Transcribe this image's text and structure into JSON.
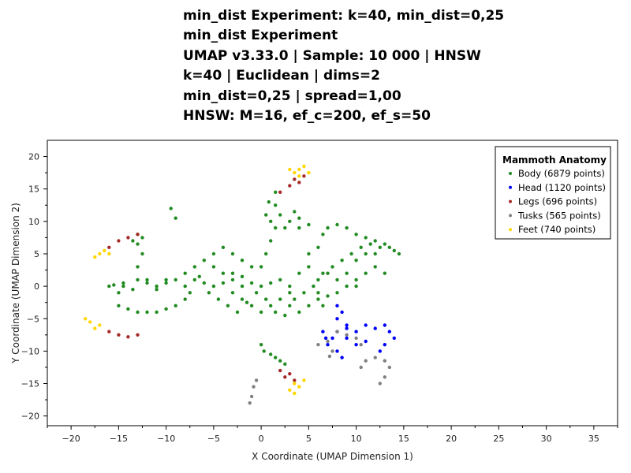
{
  "title_lines": [
    "min_dist Experiment: k=40, min_dist=0,25",
    "min_dist Experiment",
    "UMAP v3.33.0 | Sample: 10 000 | HNSW",
    "k=40 | Euclidean | dims=2",
    "min_dist=0,25 | spread=1,00",
    "HNSW: M=16, ef_c=200, ef_s=50"
  ],
  "chart_data": {
    "type": "scatter",
    "xlabel": "X Coordinate (UMAP Dimension 1)",
    "ylabel": "Y Coordinate (UMAP Dimension 2)",
    "xlim": [
      -22.5,
      37.5
    ],
    "ylim": [
      -21.5,
      22.5
    ],
    "xticks": [
      -20,
      -15,
      -10,
      -5,
      0,
      5,
      10,
      15,
      20,
      25,
      30,
      35
    ],
    "yticks": [
      20,
      15,
      10,
      5,
      0,
      -5,
      -10,
      -15,
      -20
    ],
    "grid": false,
    "legend": {
      "title": "Mammoth Anatomy",
      "placement": "top-right"
    },
    "series": [
      {
        "name": "Body (6879 points)",
        "color": "#228b22",
        "points": [
          [
            -16,
            0
          ],
          [
            -15,
            -1
          ],
          [
            -14.5,
            0.5
          ],
          [
            -13,
            1
          ],
          [
            -12,
            0.5
          ],
          [
            -11,
            0
          ],
          [
            -10,
            0.5
          ],
          [
            -9,
            1
          ],
          [
            -8,
            0
          ],
          [
            -7,
            1
          ],
          [
            -6,
            0.5
          ],
          [
            -5,
            0
          ],
          [
            -4,
            0.5
          ],
          [
            -3,
            1
          ],
          [
            -2,
            0
          ],
          [
            -1,
            0.5
          ],
          [
            0,
            0
          ],
          [
            1,
            0.5
          ],
          [
            2,
            1
          ],
          [
            3,
            0
          ],
          [
            -15,
            -3
          ],
          [
            -14,
            -3.5
          ],
          [
            -13,
            -4
          ],
          [
            -12,
            -4
          ],
          [
            -11,
            -4
          ],
          [
            -10,
            -3.5
          ],
          [
            -9,
            -3
          ],
          [
            -8,
            -2
          ],
          [
            -13,
            3
          ],
          [
            -12.5,
            5
          ],
          [
            -13,
            6.5
          ],
          [
            -13,
            8
          ],
          [
            -13.5,
            7
          ],
          [
            -12.5,
            7.5
          ],
          [
            -8,
            2
          ],
          [
            -7,
            3
          ],
          [
            -6,
            4
          ],
          [
            -5,
            5
          ],
          [
            -4,
            6
          ],
          [
            -3,
            5
          ],
          [
            -2,
            4
          ],
          [
            -1,
            3
          ],
          [
            -4,
            2
          ],
          [
            -5,
            3
          ],
          [
            -3,
            2
          ],
          [
            -2,
            1.5
          ],
          [
            -2,
            -2
          ],
          [
            -1,
            -3
          ],
          [
            0,
            -4
          ],
          [
            1,
            -3
          ],
          [
            2,
            -2
          ],
          [
            3,
            -3
          ],
          [
            4,
            -4
          ],
          [
            5,
            -3
          ],
          [
            3,
            -1
          ],
          [
            -3,
            -1
          ],
          [
            0,
            3
          ],
          [
            0.5,
            5
          ],
          [
            1,
            7
          ],
          [
            1.5,
            9
          ],
          [
            1,
            10
          ],
          [
            0.5,
            11
          ],
          [
            0.8,
            13
          ],
          [
            1.5,
            14.5
          ],
          [
            1.5,
            12.5
          ],
          [
            2,
            11
          ],
          [
            3,
            10
          ],
          [
            4,
            9
          ],
          [
            5,
            9.5
          ],
          [
            3.5,
            11.5
          ],
          [
            4,
            10.5
          ],
          [
            2.5,
            9
          ],
          [
            5,
            5
          ],
          [
            6,
            6
          ],
          [
            6.5,
            8
          ],
          [
            7,
            9
          ],
          [
            8,
            9.5
          ],
          [
            9,
            9
          ],
          [
            10,
            8
          ],
          [
            11,
            7.5
          ],
          [
            12,
            7
          ],
          [
            13,
            6.5
          ],
          [
            13.5,
            6
          ],
          [
            14,
            5.5
          ],
          [
            14.5,
            5
          ],
          [
            4,
            2
          ],
          [
            5,
            3
          ],
          [
            6,
            1
          ],
          [
            7,
            2
          ],
          [
            8,
            1
          ],
          [
            9,
            2
          ],
          [
            10,
            1
          ],
          [
            11,
            2
          ],
          [
            12,
            3
          ],
          [
            13,
            2
          ],
          [
            10,
            4
          ],
          [
            11,
            5
          ],
          [
            12,
            5
          ],
          [
            6,
            -1
          ],
          [
            6,
            -2
          ],
          [
            6.5,
            -3
          ],
          [
            7,
            -1.5
          ],
          [
            8,
            -1
          ],
          [
            9,
            0
          ],
          [
            10,
            0
          ],
          [
            0,
            -9
          ],
          [
            0.3,
            -10
          ],
          [
            1,
            -10.5
          ],
          [
            1.5,
            -11
          ],
          [
            2,
            -11.5
          ],
          [
            2.5,
            -12
          ],
          [
            -9.5,
            12
          ],
          [
            -9,
            10.5
          ],
          [
            -14.5,
            0
          ],
          [
            -15.5,
            0.2
          ],
          [
            -13.5,
            -0.5
          ],
          [
            -12,
            1
          ],
          [
            -11,
            -0.5
          ],
          [
            -10,
            1
          ],
          [
            -7.5,
            -1
          ],
          [
            -6.5,
            1.5
          ],
          [
            -5.5,
            -1
          ],
          [
            -4.5,
            -2
          ],
          [
            -3.5,
            -3
          ],
          [
            -2.5,
            -4
          ],
          [
            -1.5,
            -2.5
          ],
          [
            -0.5,
            -1
          ],
          [
            0.5,
            -2
          ],
          [
            1.5,
            -4
          ],
          [
            2.5,
            -4.5
          ],
          [
            3.5,
            -2
          ],
          [
            4.5,
            -1
          ],
          [
            5.5,
            0
          ],
          [
            6.5,
            2
          ],
          [
            7.5,
            3
          ],
          [
            8.5,
            4
          ],
          [
            9.5,
            5
          ],
          [
            10.5,
            6
          ],
          [
            11.5,
            6.5
          ],
          [
            12.5,
            6
          ]
        ]
      },
      {
        "name": "Head (1120 points)",
        "color": "#0000ff",
        "points": [
          [
            8,
            -3
          ],
          [
            8.5,
            -4
          ],
          [
            8,
            -5
          ],
          [
            9,
            -6
          ],
          [
            8,
            -7
          ],
          [
            7.5,
            -8
          ],
          [
            7,
            -9
          ],
          [
            8,
            -10
          ],
          [
            8.5,
            -11
          ],
          [
            9,
            -6.5
          ],
          [
            10,
            -7
          ],
          [
            11,
            -6
          ],
          [
            12,
            -6.5
          ],
          [
            13,
            -6
          ],
          [
            13.5,
            -7
          ],
          [
            14,
            -8
          ],
          [
            13,
            -9
          ],
          [
            12.5,
            -10
          ],
          [
            6.5,
            -7
          ],
          [
            6.8,
            -8
          ],
          [
            9,
            -8
          ],
          [
            10,
            -9
          ],
          [
            11,
            -8.5
          ]
        ]
      },
      {
        "name": "Legs (696 points)",
        "color": "#a52a2a",
        "points": [
          [
            2,
            14.5
          ],
          [
            3,
            15.5
          ],
          [
            4,
            16
          ],
          [
            4.5,
            17
          ],
          [
            3.5,
            16.5
          ],
          [
            -16,
            6
          ],
          [
            -15,
            7
          ],
          [
            -14,
            7.5
          ],
          [
            -13,
            8
          ],
          [
            -16,
            -7
          ],
          [
            -15,
            -7.5
          ],
          [
            -14,
            -7.8
          ],
          [
            -13,
            -7.5
          ],
          [
            2,
            -13
          ],
          [
            3,
            -13.5
          ],
          [
            3.5,
            -14.5
          ],
          [
            2.5,
            -14
          ]
        ]
      },
      {
        "name": "Tusks (565 points)",
        "color": "#808080",
        "points": [
          [
            -1,
            -17
          ],
          [
            -0.8,
            -15.5
          ],
          [
            -0.5,
            -14.5
          ],
          [
            -1.2,
            -18
          ],
          [
            6,
            -9
          ],
          [
            7,
            -8.5
          ],
          [
            8,
            -7
          ],
          [
            9,
            -7.5
          ],
          [
            10,
            -8
          ],
          [
            10.5,
            -9
          ],
          [
            7.5,
            -10
          ],
          [
            7.2,
            -10.8
          ],
          [
            11,
            -11.5
          ],
          [
            12,
            -11
          ],
          [
            13,
            -11.5
          ],
          [
            13.5,
            -12.5
          ],
          [
            13,
            -14
          ],
          [
            12.5,
            -15
          ],
          [
            10.5,
            -12.5
          ]
        ]
      },
      {
        "name": "Feet (740 points)",
        "color": "#ffd700",
        "points": [
          [
            4,
            18
          ],
          [
            3.5,
            17.5
          ],
          [
            4.5,
            18.5
          ],
          [
            3,
            18
          ],
          [
            5,
            17.5
          ],
          [
            4,
            17
          ],
          [
            -17,
            5
          ],
          [
            -16.5,
            5.5
          ],
          [
            -17.5,
            4.5
          ],
          [
            -16,
            5
          ],
          [
            -18,
            -5.5
          ],
          [
            -17.5,
            -6.5
          ],
          [
            -18.5,
            -5
          ],
          [
            -17,
            -6
          ],
          [
            3.5,
            -15
          ],
          [
            4,
            -15.5
          ],
          [
            3,
            -16
          ],
          [
            4.5,
            -14.5
          ],
          [
            3.5,
            -16.5
          ]
        ]
      }
    ]
  }
}
